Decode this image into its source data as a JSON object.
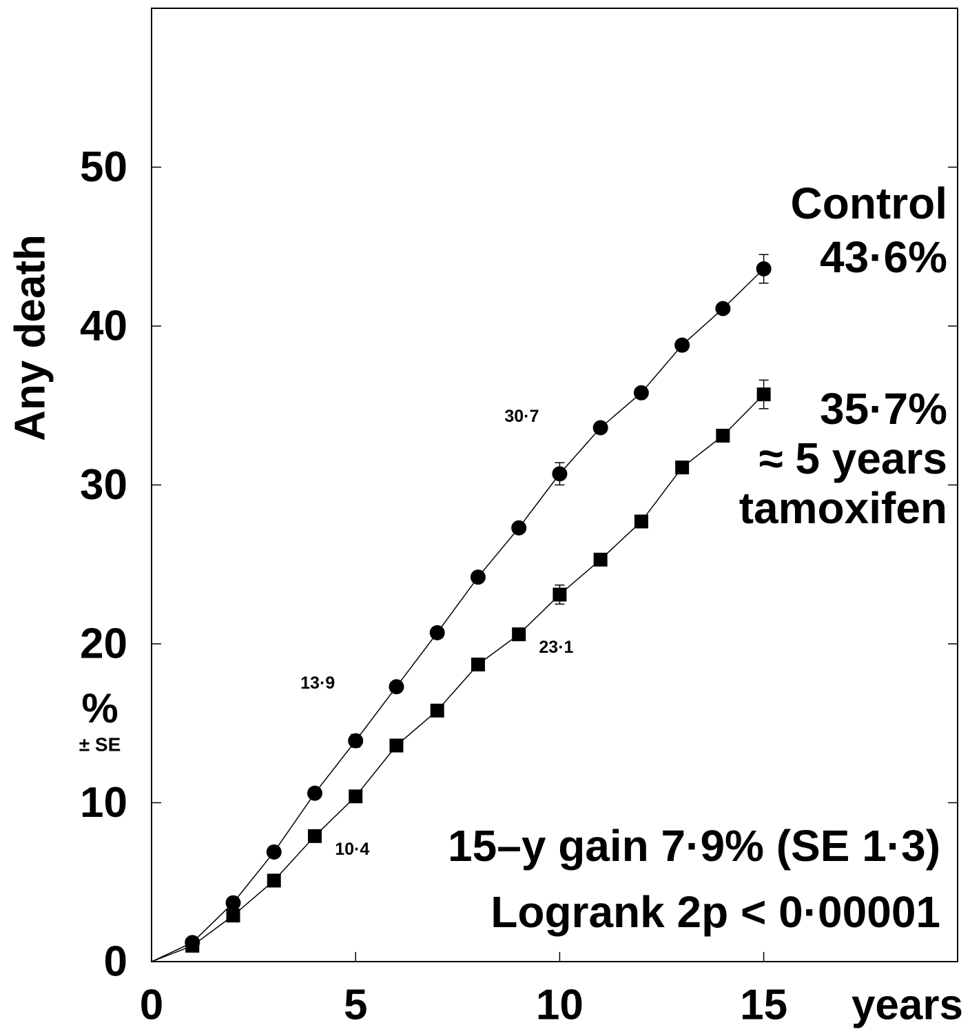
{
  "chart_data": {
    "type": "line",
    "ylabel": "Any death",
    "ylabel_unit": "%",
    "ylabel_sub": "± SE",
    "xlabel": "years",
    "x": [
      0,
      1,
      2,
      3,
      4,
      5,
      6,
      7,
      8,
      9,
      10,
      11,
      12,
      13,
      14,
      15
    ],
    "series": [
      {
        "name": "Control",
        "color": "#000000",
        "marker": "circle",
        "values": [
          0,
          1.2,
          3.7,
          6.9,
          10.6,
          13.9,
          17.3,
          20.7,
          24.2,
          27.3,
          30.7,
          33.6,
          35.8,
          38.8,
          41.1,
          43.6
        ],
        "errors": [
          null,
          null,
          null,
          null,
          null,
          0.4,
          null,
          null,
          null,
          null,
          0.7,
          null,
          null,
          null,
          null,
          0.9
        ],
        "value_labels": [
          null,
          null,
          null,
          null,
          null,
          "13·9",
          null,
          null,
          null,
          null,
          "30·7",
          null,
          null,
          null,
          null,
          null
        ]
      },
      {
        "name": "≈ 5 years tamoxifen",
        "color": "#000000",
        "marker": "square",
        "values": [
          0,
          1.0,
          2.9,
          5.1,
          7.9,
          10.4,
          13.6,
          15.8,
          18.7,
          20.6,
          23.1,
          25.3,
          27.7,
          31.1,
          33.1,
          35.7
        ],
        "errors": [
          null,
          null,
          null,
          null,
          null,
          null,
          null,
          null,
          null,
          null,
          0.6,
          null,
          null,
          null,
          null,
          0.9
        ],
        "value_labels": [
          null,
          null,
          null,
          null,
          null,
          "10·4",
          null,
          null,
          null,
          null,
          "23·1",
          null,
          null,
          null,
          null,
          null
        ]
      }
    ],
    "annotations": [
      "Control",
      "43·6%",
      "35·7%",
      "≈ 5 years",
      "tamoxifen",
      "15–y gain 7·9% (SE 1·3)",
      "Logrank 2p < 0·00001"
    ],
    "xlim": [
      0,
      19.75
    ],
    "xticks": [
      0,
      5,
      10,
      15
    ],
    "ylim": [
      0,
      60
    ],
    "yticks": [
      0,
      10,
      20,
      30,
      40,
      50
    ]
  }
}
